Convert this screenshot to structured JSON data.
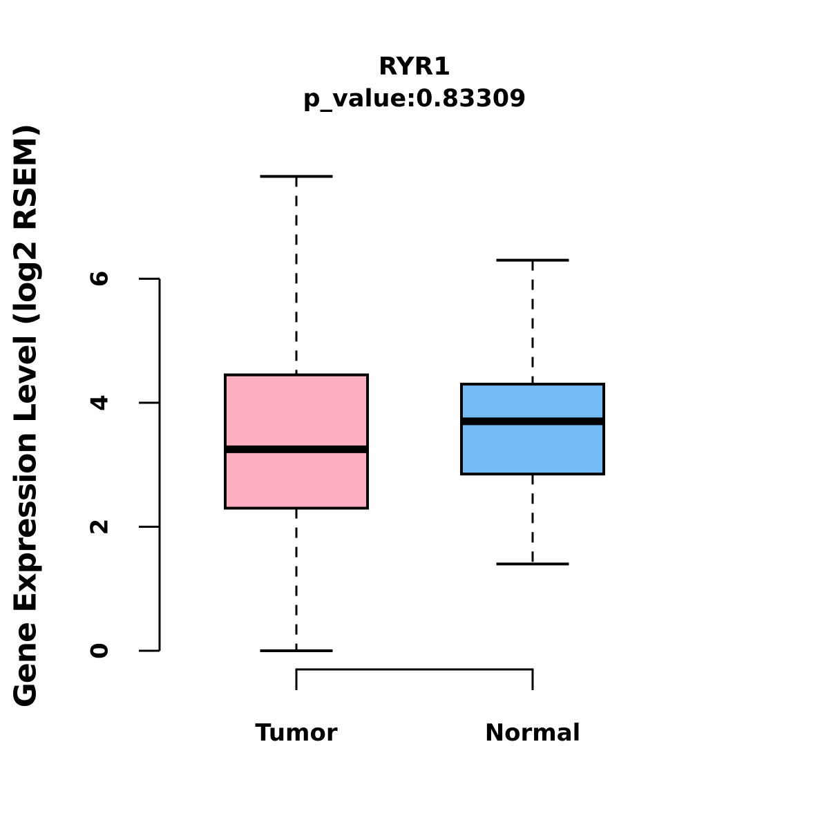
{
  "chart_data": {
    "type": "boxplot",
    "title": "RYR1",
    "subtitle": "p_value:0.83309",
    "ylabel": "Gene Expression Level (log2 RSEM)",
    "xlabel": "",
    "categories": [
      "Tumor",
      "Normal"
    ],
    "y_ticks": [
      0,
      2,
      4,
      6
    ],
    "ylim": [
      0,
      7.9
    ],
    "grid": false,
    "legend": "none",
    "series": [
      {
        "name": "Tumor",
        "color": "#fdaec1",
        "min": 0.0,
        "q1": 2.3,
        "median": 3.25,
        "q3": 4.45,
        "max": 7.65
      },
      {
        "name": "Normal",
        "color": "#73bbf5",
        "min": 1.4,
        "q1": 2.85,
        "median": 3.7,
        "q3": 4.3,
        "max": 6.3
      }
    ],
    "annotations": {
      "group_bracket": "connects Tumor and Normal below axis"
    }
  }
}
